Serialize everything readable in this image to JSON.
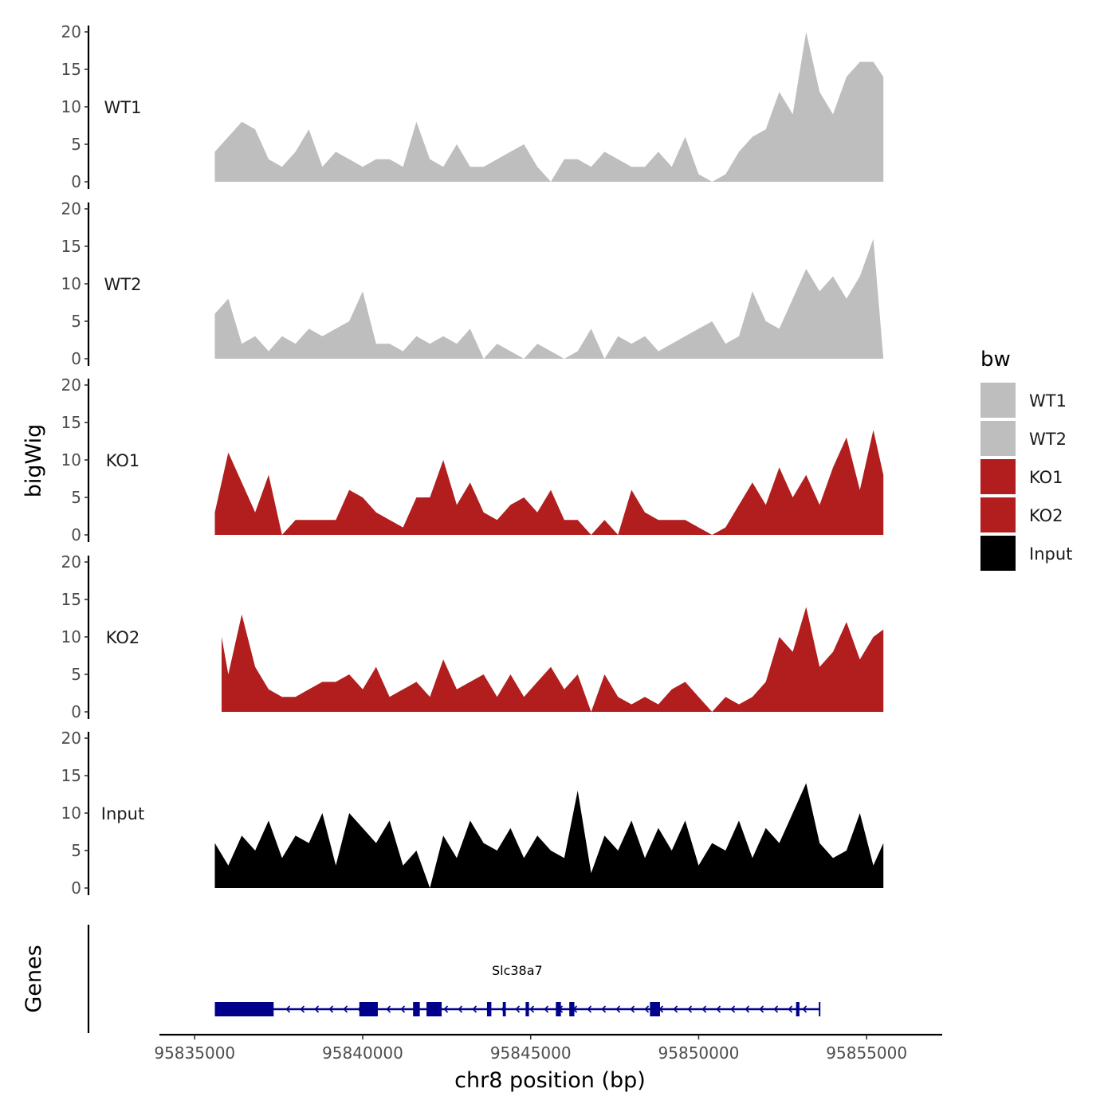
{
  "chart_data": {
    "type": "area",
    "title": "",
    "region": {
      "chrom": "chr8",
      "start": 95835600,
      "end": 95855500
    },
    "xlabel": "chr8 position (bp)",
    "ylabel": "bigWig",
    "genes_label": "Genes",
    "xlim": [
      95833950,
      95857250
    ],
    "x_ticks": [
      95835000,
      95840000,
      95845000,
      95850000,
      95855000
    ],
    "x_tick_labels": [
      "95835000",
      "95840000",
      "95845000",
      "95850000",
      "95855000"
    ],
    "y_ticks": [
      0,
      5,
      10,
      15,
      20
    ],
    "y_tick_labels": [
      "0",
      "5",
      "10",
      "15",
      "20"
    ],
    "ylim": [
      0,
      20
    ],
    "grid": false,
    "legend": {
      "title": "bw",
      "position": "right",
      "entries": [
        "WT1",
        "WT2",
        "KO1",
        "KO2",
        "Input"
      ]
    },
    "tracks": [
      {
        "name": "WT1",
        "color": "#bebebe",
        "x": [
          95835600,
          95836000,
          95836400,
          95836800,
          95837200,
          95837600,
          95838000,
          95838400,
          95838800,
          95839200,
          95839600,
          95840000,
          95840400,
          95840800,
          95841200,
          95841600,
          95842000,
          95842400,
          95842800,
          95843200,
          95843600,
          95844000,
          95844400,
          95844800,
          95845200,
          95845600,
          95846000,
          95846400,
          95846800,
          95847200,
          95847600,
          95848000,
          95848400,
          95848800,
          95849200,
          95849600,
          95850000,
          95850400,
          95850800,
          95851200,
          95851600,
          95852000,
          95852400,
          95852800,
          95853200,
          95853600,
          95854000,
          95854400,
          95854800,
          95855200,
          95855500
        ],
        "values": [
          4,
          6,
          8,
          7,
          3,
          2,
          4,
          7,
          2,
          4,
          3,
          2,
          3,
          3,
          2,
          8,
          3,
          2,
          5,
          2,
          2,
          3,
          4,
          5,
          2,
          0,
          3,
          3,
          2,
          4,
          3,
          2,
          2,
          4,
          2,
          6,
          1,
          0,
          1,
          4,
          6,
          7,
          12,
          9,
          20,
          12,
          9,
          14,
          16,
          16,
          14
        ]
      },
      {
        "name": "WT2",
        "color": "#bebebe",
        "x": [
          95835600,
          95836000,
          95836400,
          95836800,
          95837200,
          95837600,
          95838000,
          95838400,
          95838800,
          95839200,
          95839600,
          95840000,
          95840400,
          95840800,
          95841200,
          95841600,
          95842000,
          95842400,
          95842800,
          95843200,
          95843600,
          95844000,
          95844400,
          95844800,
          95845200,
          95845600,
          95846000,
          95846400,
          95846800,
          95847200,
          95847600,
          95848000,
          95848400,
          95848800,
          95849200,
          95849600,
          95850000,
          95850400,
          95850800,
          95851200,
          95851600,
          95852000,
          95852400,
          95852800,
          95853200,
          95853600,
          95854000,
          95854400,
          95854800,
          95855200,
          95855500
        ],
        "values": [
          6,
          8,
          2,
          3,
          1,
          3,
          2,
          4,
          3,
          4,
          5,
          9,
          2,
          2,
          1,
          3,
          2,
          3,
          2,
          4,
          0,
          2,
          1,
          0,
          2,
          1,
          0,
          1,
          4,
          0,
          3,
          2,
          3,
          1,
          2,
          3,
          4,
          5,
          2,
          3,
          9,
          5,
          4,
          8,
          12,
          9,
          11,
          8,
          11,
          16,
          0
        ]
      },
      {
        "name": "KO1",
        "color": "#b21e1e",
        "x": [
          95835600,
          95836000,
          95836400,
          95836800,
          95837200,
          95837600,
          95838000,
          95838400,
          95838800,
          95839200,
          95839600,
          95840000,
          95840400,
          95840800,
          95841200,
          95841600,
          95842000,
          95842400,
          95842800,
          95843200,
          95843600,
          95844000,
          95844400,
          95844800,
          95845200,
          95845600,
          95846000,
          95846400,
          95846800,
          95847200,
          95847600,
          95848000,
          95848400,
          95848800,
          95849200,
          95849600,
          95850000,
          95850400,
          95850800,
          95851200,
          95851600,
          95852000,
          95852400,
          95852800,
          95853200,
          95853600,
          95854000,
          95854400,
          95854800,
          95855200,
          95855500
        ],
        "values": [
          3,
          11,
          7,
          3,
          8,
          0,
          2,
          2,
          2,
          2,
          6,
          5,
          3,
          2,
          1,
          5,
          5,
          10,
          4,
          7,
          3,
          2,
          4,
          5,
          3,
          6,
          2,
          2,
          0,
          2,
          0,
          6,
          3,
          2,
          2,
          2,
          1,
          0,
          1,
          4,
          7,
          4,
          9,
          5,
          8,
          4,
          9,
          13,
          6,
          14,
          8
        ]
      },
      {
        "name": "KO2",
        "color": "#b21e1e",
        "x": [
          95835800,
          95836000,
          95836400,
          95836800,
          95837200,
          95837600,
          95838000,
          95838400,
          95838800,
          95839200,
          95839600,
          95840000,
          95840400,
          95840800,
          95841200,
          95841600,
          95842000,
          95842400,
          95842800,
          95843200,
          95843600,
          95844000,
          95844400,
          95844800,
          95845200,
          95845600,
          95846000,
          95846400,
          95846800,
          95847200,
          95847600,
          95848000,
          95848400,
          95848800,
          95849200,
          95849600,
          95850000,
          95850400,
          95850800,
          95851200,
          95851600,
          95852000,
          95852400,
          95852800,
          95853200,
          95853600,
          95854000,
          95854400,
          95854800,
          95855200,
          95855500
        ],
        "values": [
          10,
          5,
          13,
          6,
          3,
          2,
          2,
          3,
          4,
          4,
          5,
          3,
          6,
          2,
          3,
          4,
          2,
          7,
          3,
          4,
          5,
          2,
          5,
          2,
          4,
          6,
          3,
          5,
          0,
          5,
          2,
          1,
          2,
          1,
          3,
          4,
          2,
          0,
          2,
          1,
          2,
          4,
          10,
          8,
          14,
          6,
          8,
          12,
          7,
          10,
          11
        ]
      },
      {
        "name": "Input",
        "color": "#000000",
        "x": [
          95835600,
          95836000,
          95836400,
          95836800,
          95837200,
          95837600,
          95838000,
          95838400,
          95838800,
          95839200,
          95839600,
          95840000,
          95840400,
          95840800,
          95841200,
          95841600,
          95842000,
          95842400,
          95842800,
          95843200,
          95843600,
          95844000,
          95844400,
          95844800,
          95845200,
          95845600,
          95846000,
          95846400,
          95846800,
          95847200,
          95847600,
          95848000,
          95848400,
          95848800,
          95849200,
          95849600,
          95850000,
          95850400,
          95850800,
          95851200,
          95851600,
          95852000,
          95852400,
          95852800,
          95853200,
          95853600,
          95854000,
          95854400,
          95854800,
          95855200,
          95855500
        ],
        "values": [
          6,
          3,
          7,
          5,
          9,
          4,
          7,
          6,
          10,
          3,
          10,
          8,
          6,
          9,
          3,
          5,
          0,
          7,
          4,
          9,
          6,
          5,
          8,
          4,
          7,
          5,
          4,
          13,
          2,
          7,
          5,
          9,
          4,
          8,
          5,
          9,
          3,
          6,
          5,
          9,
          4,
          8,
          6,
          10,
          14,
          6,
          4,
          5,
          10,
          3,
          6
        ]
      }
    ],
    "genes": [
      {
        "name": "Slc38a7",
        "start": 95835600,
        "end": 95853600,
        "strand": "-",
        "exons": [
          [
            95835600,
            95837350
          ],
          [
            95839900,
            95840450
          ],
          [
            95841500,
            95841700
          ],
          [
            95841900,
            95842350
          ],
          [
            95843700,
            95843830
          ],
          [
            95844170,
            95844260
          ],
          [
            95844850,
            95844950
          ],
          [
            95845750,
            95845900
          ],
          [
            95846150,
            95846300
          ],
          [
            95848550,
            95848850
          ],
          [
            95852900,
            95853000
          ]
        ]
      }
    ]
  }
}
